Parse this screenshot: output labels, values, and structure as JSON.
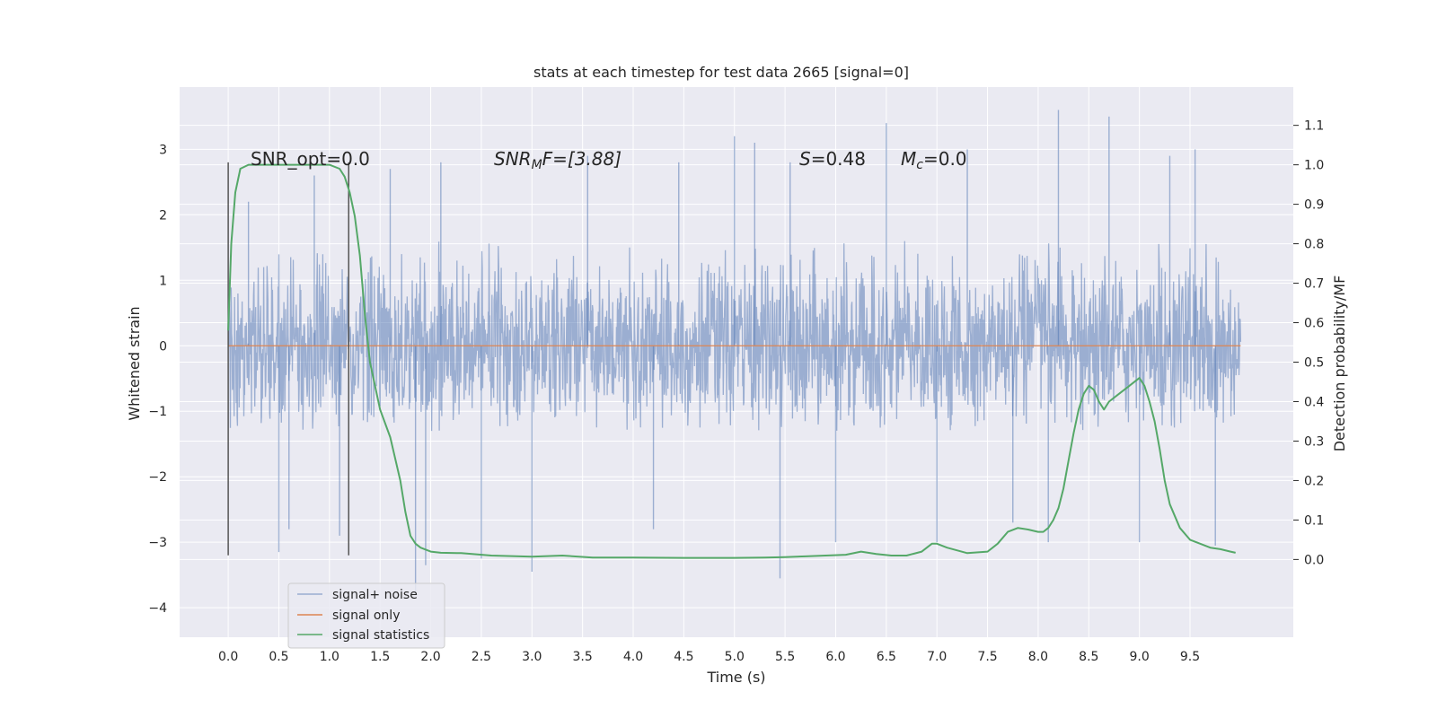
{
  "chart_data": {
    "type": "line",
    "title": "stats at each timestep for test data 2665 [signal=0]",
    "xlabel": "Time (s)",
    "ylabel": "Whitened strain",
    "y2label": "Detection probability/MF",
    "xlim": [
      -0.48,
      10.52
    ],
    "ylim": [
      -4.45,
      3.95
    ],
    "y2lim": [
      -0.197,
      1.197
    ],
    "x_ticks": [
      0.0,
      0.5,
      1.0,
      1.5,
      2.0,
      2.5,
      3.0,
      3.5,
      4.0,
      4.5,
      5.0,
      5.5,
      6.0,
      6.5,
      7.0,
      7.5,
      8.0,
      8.5,
      9.0,
      9.5
    ],
    "x_tick_labels": [
      "0.0",
      "0.5",
      "1.0",
      "1.5",
      "2.0",
      "2.5",
      "3.0",
      "3.5",
      "4.0",
      "4.5",
      "5.0",
      "5.5",
      "6.0",
      "6.5",
      "7.0",
      "7.5",
      "8.0",
      "8.5",
      "9.0",
      "9.5"
    ],
    "y_ticks": [
      3,
      2,
      1,
      0,
      -1,
      -2,
      -3,
      -4
    ],
    "y_tick_labels": [
      "3",
      "2",
      "1",
      "0",
      "−1",
      "−2",
      "−3",
      "−4"
    ],
    "y2_ticks": [
      1.1,
      1.0,
      0.9,
      0.8,
      0.7,
      0.6,
      0.5,
      0.4,
      0.3,
      0.2,
      0.1,
      0.0
    ],
    "y2_tick_labels": [
      "1.1",
      "1.0",
      "0.9",
      "0.8",
      "0.7",
      "0.6",
      "0.5",
      "0.4",
      "0.3",
      "0.2",
      "0.1",
      "0.0"
    ],
    "grid": true,
    "legend_position": "lower-left",
    "annotations": {
      "snr_opt": "SNR_opt=0.0",
      "snr_mf_main": "SNR",
      "snr_mf_sub": "M",
      "snr_mf_rest": "F=[3.88]",
      "s_main": "S",
      "s_rest": "=0.48",
      "mc_main": "M",
      "mc_sub": "c",
      "mc_rest": "=0.0"
    },
    "vertical_markers_x": [
      0.0,
      1.19
    ],
    "vertical_markers_y_range": [
      -3.2,
      2.8
    ],
    "series": [
      {
        "name": "signal+ noise",
        "color": "#4c72b0",
        "opacity": 0.5,
        "axis": "left",
        "x_range": [
          0.0,
          10.0
        ],
        "typical_amplitude": [
          -1.3,
          1.6
        ],
        "peak_max": [
          [
            0.2,
            2.2
          ],
          [
            0.85,
            2.6
          ],
          [
            1.6,
            2.7
          ],
          [
            2.1,
            2.8
          ],
          [
            3.55,
            2.9
          ],
          [
            4.45,
            2.8
          ],
          [
            5.0,
            3.2
          ],
          [
            5.2,
            3.1
          ],
          [
            5.55,
            2.8
          ],
          [
            6.5,
            3.4
          ],
          [
            7.3,
            3.0
          ],
          [
            8.2,
            3.6
          ],
          [
            8.7,
            3.5
          ],
          [
            9.3,
            2.9
          ],
          [
            9.55,
            3.0
          ]
        ],
        "peak_min": [
          [
            0.5,
            -3.15
          ],
          [
            0.6,
            -2.8
          ],
          [
            1.1,
            -2.9
          ],
          [
            1.85,
            -3.8
          ],
          [
            1.95,
            -3.35
          ],
          [
            2.5,
            -3.25
          ],
          [
            3.0,
            -3.45
          ],
          [
            4.2,
            -2.8
          ],
          [
            5.45,
            -3.55
          ],
          [
            6.0,
            -3.0
          ],
          [
            7.0,
            -3.0
          ],
          [
            7.75,
            -2.7
          ],
          [
            8.1,
            -3.0
          ],
          [
            9.0,
            -3.0
          ],
          [
            9.75,
            -3.05
          ]
        ]
      },
      {
        "name": "signal only",
        "color": "#dd8452",
        "axis": "left",
        "x": [
          0.0,
          10.0
        ],
        "y": [
          0.0,
          0.0
        ]
      },
      {
        "name": "signal statistics",
        "color": "#55a868",
        "axis": "right",
        "x": [
          0.0,
          0.03,
          0.07,
          0.12,
          0.2,
          0.3,
          0.45,
          0.6,
          0.8,
          1.0,
          1.1,
          1.15,
          1.2,
          1.25,
          1.3,
          1.35,
          1.4,
          1.5,
          1.6,
          1.7,
          1.75,
          1.8,
          1.85,
          1.9,
          2.0,
          2.1,
          2.3,
          2.6,
          3.0,
          3.3,
          3.6,
          4.0,
          4.5,
          5.0,
          5.3,
          5.5,
          5.7,
          5.9,
          6.1,
          6.25,
          6.4,
          6.55,
          6.7,
          6.85,
          6.95,
          7.0,
          7.1,
          7.3,
          7.5,
          7.6,
          7.7,
          7.8,
          7.9,
          8.0,
          8.05,
          8.1,
          8.15,
          8.2,
          8.25,
          8.3,
          8.35,
          8.4,
          8.45,
          8.5,
          8.55,
          8.6,
          8.65,
          8.7,
          8.8,
          8.9,
          9.0,
          9.05,
          9.1,
          9.15,
          9.2,
          9.25,
          9.3,
          9.4,
          9.5,
          9.6,
          9.7,
          9.8,
          9.9,
          9.95
        ],
        "y": [
          0.58,
          0.8,
          0.93,
          0.99,
          1.0,
          1.0,
          1.0,
          1.0,
          1.0,
          1.0,
          0.99,
          0.97,
          0.93,
          0.87,
          0.77,
          0.62,
          0.5,
          0.38,
          0.31,
          0.2,
          0.12,
          0.06,
          0.04,
          0.03,
          0.02,
          0.017,
          0.016,
          0.01,
          0.007,
          0.01,
          0.005,
          0.005,
          0.004,
          0.004,
          0.005,
          0.006,
          0.008,
          0.01,
          0.012,
          0.02,
          0.014,
          0.01,
          0.01,
          0.02,
          0.04,
          0.04,
          0.03,
          0.016,
          0.02,
          0.04,
          0.07,
          0.08,
          0.076,
          0.07,
          0.07,
          0.08,
          0.1,
          0.13,
          0.18,
          0.25,
          0.32,
          0.38,
          0.42,
          0.44,
          0.43,
          0.4,
          0.38,
          0.4,
          0.42,
          0.44,
          0.46,
          0.44,
          0.4,
          0.35,
          0.28,
          0.2,
          0.14,
          0.08,
          0.05,
          0.04,
          0.03,
          0.026,
          0.02,
          0.017
        ]
      }
    ]
  }
}
